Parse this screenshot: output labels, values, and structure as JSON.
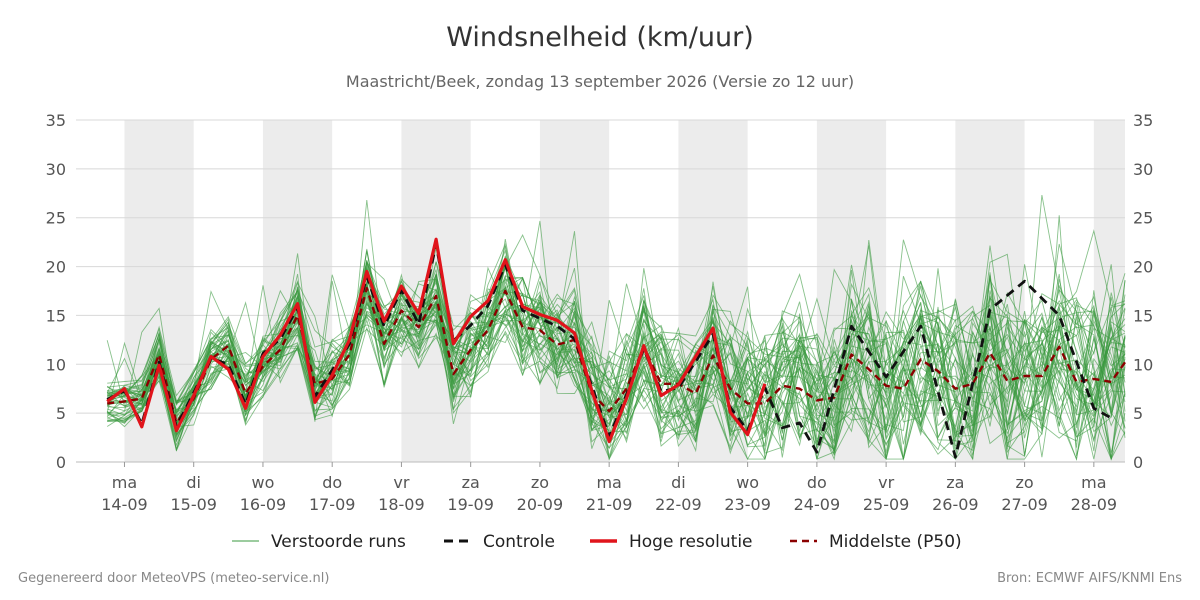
{
  "header": {
    "title": "Windsnelheid (km/uur)",
    "subtitle": "Maastricht/Beek, zondag 13 september 2026 (Versie zo 12 uur)"
  },
  "footer": {
    "left": "Gegenereerd door MeteoVPS (meteo-service.nl)",
    "right": "Bron: ECMWF AIFS/KNMI Ens"
  },
  "colors": {
    "ensemble": "#3a9a3f",
    "control": "#111111",
    "high_res": "#e0141b",
    "median": "#8b0000",
    "night_band": "#ececec",
    "grid": "#d8d8d8"
  },
  "chart_data": {
    "type": "line",
    "x_unit": "days from ma 14-09 00:00",
    "xlim": [
      -0.7,
      14.45
    ],
    "ylim": [
      0,
      35
    ],
    "yticks": [
      0,
      5,
      10,
      15,
      20,
      25,
      30,
      35
    ],
    "grid": true,
    "legend_position": "bottom",
    "x_ticks": [
      {
        "day": "ma",
        "date": "14-09"
      },
      {
        "day": "di",
        "date": "15-09"
      },
      {
        "day": "wo",
        "date": "16-09"
      },
      {
        "day": "do",
        "date": "17-09"
      },
      {
        "day": "vr",
        "date": "18-09"
      },
      {
        "day": "za",
        "date": "19-09"
      },
      {
        "day": "zo",
        "date": "20-09"
      },
      {
        "day": "ma",
        "date": "21-09"
      },
      {
        "day": "di",
        "date": "22-09"
      },
      {
        "day": "wo",
        "date": "23-09"
      },
      {
        "day": "do",
        "date": "24-09"
      },
      {
        "day": "vr",
        "date": "25-09"
      },
      {
        "day": "za",
        "date": "26-09"
      },
      {
        "day": "zo",
        "date": "27-09"
      },
      {
        "day": "ma",
        "date": "28-09"
      }
    ],
    "shaded_days": [
      0,
      2,
      4,
      6,
      8,
      10,
      12,
      14
    ],
    "series": [
      {
        "name": "Hoge resolutie",
        "key": "high_res",
        "x": [
          -0.25,
          0,
          0.25,
          0.5,
          0.75,
          1,
          1.25,
          1.5,
          1.75,
          2,
          2.25,
          2.5,
          2.75,
          3,
          3.25,
          3.5,
          3.75,
          4,
          4.25,
          4.5,
          4.75,
          5,
          5.25,
          5.5,
          5.75,
          6,
          6.25,
          6.5,
          6.75,
          7,
          7.25,
          7.5,
          7.75,
          8,
          8.25,
          8.5,
          8.75,
          9,
          9.25
        ],
        "y": [
          6.2,
          7.5,
          3.6,
          9.9,
          3.2,
          6.8,
          10.8,
          9.5,
          5.5,
          10.8,
          13.0,
          16.2,
          6.1,
          8.9,
          12.5,
          19.5,
          14.4,
          18.0,
          15.2,
          22.8,
          12.1,
          14.9,
          16.5,
          20.7,
          15.9,
          15.1,
          14.5,
          13.2,
          7.3,
          2.1,
          6.5,
          11.9,
          6.8,
          7.9,
          10.8,
          13.7,
          5.1,
          2.8,
          8.0
        ]
      },
      {
        "name": "Controle",
        "key": "control",
        "x": [
          -0.25,
          0,
          0.25,
          0.5,
          0.75,
          1,
          1.25,
          1.5,
          1.75,
          2,
          2.25,
          2.5,
          2.75,
          3,
          3.25,
          3.5,
          3.75,
          4,
          4.25,
          4.5,
          4.75,
          5,
          5.25,
          5.5,
          5.75,
          6,
          6.25,
          6.5,
          6.75,
          7,
          7.25,
          7.5,
          7.75,
          8,
          8.25,
          8.5,
          8.75,
          9,
          9.25,
          9.5,
          9.75,
          10,
          10.5,
          11,
          11.5,
          12,
          12.5,
          13,
          13.5,
          14,
          14.25
        ],
        "y": [
          6.4,
          7.3,
          3.9,
          10.2,
          3.6,
          7.1,
          10.6,
          10.0,
          5.9,
          11.1,
          12.6,
          15.8,
          6.7,
          9.4,
          12.1,
          19.0,
          13.9,
          17.6,
          14.1,
          22.3,
          12.4,
          14.0,
          16.0,
          20.2,
          15.5,
          14.7,
          13.9,
          12.6,
          7.8,
          2.6,
          6.9,
          11.6,
          7.2,
          7.6,
          10.3,
          13.1,
          5.6,
          3.2,
          7.6,
          3.5,
          4.0,
          1.0,
          13.9,
          8.7,
          13.9,
          0.5,
          15.6,
          18.5,
          15.0,
          5.5,
          4.5
        ]
      },
      {
        "name": "Middelste (P50)",
        "key": "median",
        "x": [
          -0.25,
          0,
          0.25,
          0.5,
          0.75,
          1,
          1.25,
          1.5,
          1.75,
          2,
          2.25,
          2.5,
          2.75,
          3,
          3.25,
          3.5,
          3.75,
          4,
          4.25,
          4.5,
          4.75,
          5,
          5.25,
          5.5,
          5.75,
          6,
          6.25,
          6.5,
          6.75,
          7,
          7.25,
          7.5,
          7.75,
          8,
          8.25,
          8.5,
          8.75,
          9,
          9.25,
          9.5,
          9.75,
          10,
          10.25,
          10.5,
          10.75,
          11,
          11.25,
          11.5,
          11.75,
          12,
          12.25,
          12.5,
          12.75,
          13,
          13.25,
          13.5,
          13.75,
          14,
          14.25,
          14.45
        ],
        "y": [
          6.0,
          6.2,
          6.5,
          11.0,
          4.0,
          6.5,
          10.5,
          11.9,
          7.0,
          9.8,
          11.5,
          15.0,
          8.0,
          8.5,
          11.0,
          17.8,
          12.1,
          15.5,
          13.8,
          17.0,
          9.0,
          11.5,
          13.5,
          17.5,
          13.8,
          13.5,
          12.0,
          12.5,
          7.0,
          5.2,
          7.5,
          11.8,
          8.0,
          8.0,
          7.0,
          10.9,
          7.5,
          6.0,
          6.0,
          7.8,
          7.5,
          6.3,
          6.6,
          11.0,
          9.5,
          7.8,
          7.5,
          10.5,
          9.3,
          7.5,
          8.0,
          11.2,
          8.3,
          8.8,
          8.8,
          11.8,
          8.2,
          8.5,
          8.2,
          10.2
        ]
      }
    ],
    "ensemble_runs": {
      "name": "Verstoorde runs",
      "count": 50,
      "spread_note": "50 perturbed members spread around the median, widening with lead time"
    }
  }
}
